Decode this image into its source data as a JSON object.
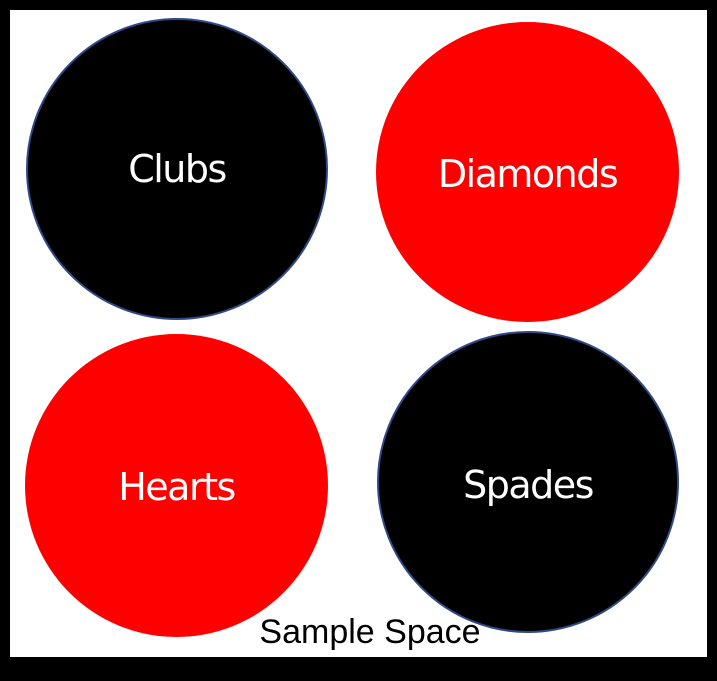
{
  "colors": {
    "black_suit": "#000000",
    "red_suit": "#ff0000",
    "label_text": "#ffffff",
    "frame": "#000000"
  },
  "suits": [
    {
      "label": "Clubs",
      "color": "black"
    },
    {
      "label": "Diamonds",
      "color": "red"
    },
    {
      "label": "Hearts",
      "color": "red"
    },
    {
      "label": "Spades",
      "color": "black"
    }
  ],
  "caption": "Sample Space"
}
